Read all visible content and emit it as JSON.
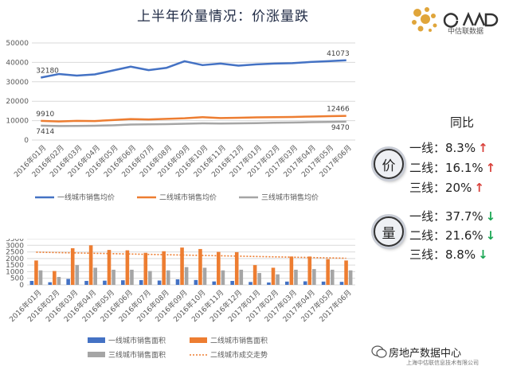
{
  "title": "上半年价量情况：价涨量跌",
  "logo": {
    "text": "中估联数据"
  },
  "yoy": {
    "title": "同比",
    "price_badge": "价",
    "volume_badge": "量",
    "price_rows": [
      {
        "label": "一线：8.3%",
        "dir": "up"
      },
      {
        "label": "二线：16.1%",
        "dir": "up"
      },
      {
        "label": "三线：20%",
        "dir": "up"
      }
    ],
    "volume_rows": [
      {
        "label": "一线：37.7%",
        "dir": "down"
      },
      {
        "label": "二线：21.6%",
        "dir": "down"
      },
      {
        "label": "三线：8.8%",
        "dir": "down"
      }
    ],
    "up_arrow": "↑",
    "down_arrow": "↓"
  },
  "watermark": {
    "text": "房地产数据中心",
    "sub": "上海中估联信息技术有限公司"
  },
  "chart_data": [
    {
      "type": "line",
      "categories": [
        "2016年01月",
        "2016年02月",
        "2016年03月",
        "2016年04月",
        "2016年05月",
        "2016年06月",
        "2016年07月",
        "2016年08月",
        "2016年09月",
        "2016年10月",
        "2016年11月",
        "2016年12月",
        "2017年01月",
        "2017年02月",
        "2017年03月",
        "2017年04月",
        "2017年05月",
        "2017年06月"
      ],
      "ylim": [
        0,
        50000
      ],
      "yticks": [
        "0",
        "10000",
        "20000",
        "30000",
        "40000",
        "50000"
      ],
      "grid": true,
      "legend": "bottom",
      "series": [
        {
          "name": "一线城市销售均价",
          "color": "#4472c4",
          "values": [
            32180,
            34000,
            33200,
            33800,
            35800,
            37800,
            36000,
            37200,
            40600,
            38600,
            39400,
            38300,
            39000,
            39400,
            39600,
            40200,
            40600,
            41073
          ]
        },
        {
          "name": "二线城市销售均价",
          "color": "#ed7d31",
          "values": [
            9910,
            9600,
            9900,
            9800,
            10300,
            10800,
            10600,
            10900,
            11200,
            11800,
            11300,
            11500,
            11700,
            11800,
            11900,
            12100,
            12300,
            12466
          ]
        },
        {
          "name": "三线城市销售均价",
          "color": "#a5a5a5",
          "values": [
            7414,
            7200,
            7300,
            7400,
            7600,
            8000,
            8100,
            8200,
            8400,
            8600,
            8500,
            8600,
            8700,
            8900,
            9000,
            9200,
            9300,
            9470
          ]
        }
      ],
      "data_labels": [
        {
          "series": 0,
          "index": 0,
          "text": "32180"
        },
        {
          "series": 0,
          "index": 17,
          "text": "41073"
        },
        {
          "series": 1,
          "index": 0,
          "text": "9910"
        },
        {
          "series": 1,
          "index": 17,
          "text": "12466"
        },
        {
          "series": 2,
          "index": 0,
          "text": "7414"
        },
        {
          "series": 2,
          "index": 17,
          "text": "9470"
        }
      ]
    },
    {
      "type": "bar",
      "categories": [
        "2016年01月",
        "2016年02月",
        "2016年03月",
        "2016年04月",
        "2016年05月",
        "2016年06月",
        "2016年07月",
        "2016年08月",
        "2016年09月",
        "2016年10月",
        "2016年11月",
        "2016年12月",
        "2017年01月",
        "2017年02月",
        "2017年03月",
        "2017年04月",
        "2017年05月",
        "2017年06月"
      ],
      "ylim": [
        0,
        3500
      ],
      "yticks": [
        "0",
        "500",
        "1000",
        "1500",
        "2000",
        "2500",
        "3000",
        "3500"
      ],
      "grid": true,
      "legend": "bottom",
      "series": [
        {
          "name": "一线城市销售面积",
          "color": "#4472c4",
          "values": [
            300,
            200,
            450,
            300,
            320,
            350,
            360,
            330,
            420,
            370,
            260,
            300,
            220,
            180,
            250,
            270,
            250,
            230
          ]
        },
        {
          "name": "二线城市销售面积",
          "color": "#ed7d31",
          "values": [
            1850,
            1050,
            2780,
            3000,
            2650,
            2620,
            2430,
            2550,
            2830,
            2720,
            2500,
            2480,
            1500,
            1300,
            2150,
            2150,
            1950,
            1850
          ]
        },
        {
          "name": "三线城市销售面积",
          "color": "#a5a5a5",
          "values": [
            1100,
            600,
            1500,
            1300,
            1150,
            1150,
            1050,
            1100,
            1350,
            1300,
            1100,
            1150,
            900,
            800,
            1150,
            1200,
            1150,
            1100
          ]
        }
      ],
      "trend": {
        "name": "二线城市成交走势",
        "color": "#ed7d31",
        "start": 2480,
        "end": 2020
      }
    }
  ]
}
